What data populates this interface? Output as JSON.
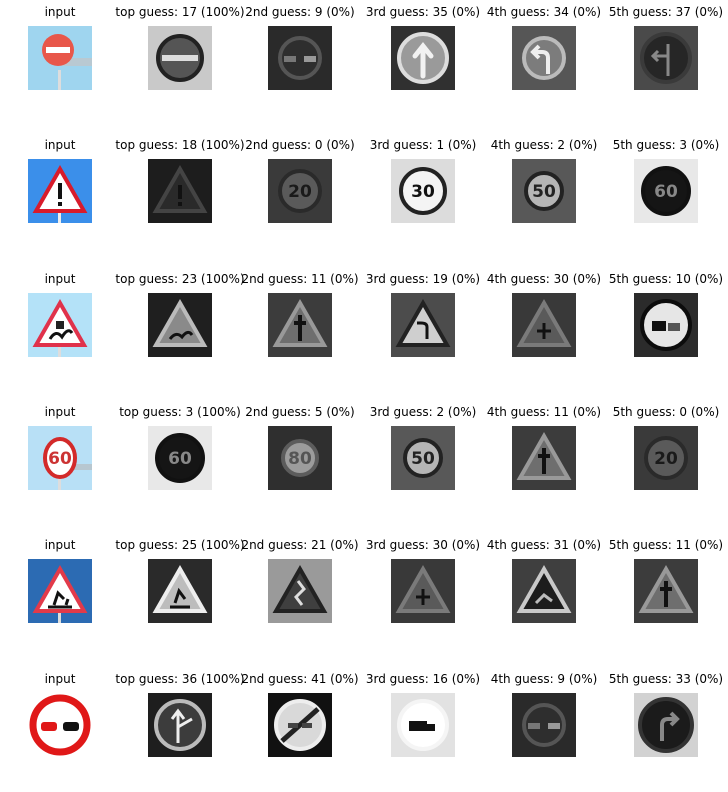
{
  "rows": [
    {
      "titles": [
        "input",
        "top guess: 17 (100%)",
        "2nd guess: 9 (0%)",
        "3rd guess: 35 (0%)",
        "4th guess: 34 (0%)",
        "5th guess: 37 (0%)"
      ],
      "images": [
        "input-no-entry-sign",
        "no-entry-sign-gray",
        "no-passing-sign-gray",
        "ahead-only-sign-gray",
        "turn-left-ahead-sign-gray",
        "go-straight-or-left-sign-gray"
      ]
    },
    {
      "titles": [
        "input",
        "top guess: 18 (100%)",
        "2nd guess: 0 (0%)",
        "3rd guess: 1 (0%)",
        "4th guess: 2 (0%)",
        "5th guess: 3 (0%)"
      ],
      "images": [
        "input-general-caution-sign",
        "general-caution-sign-gray",
        "speed-limit-20-sign-gray",
        "speed-limit-30-sign-gray",
        "speed-limit-50-sign-gray",
        "speed-limit-60-sign-gray"
      ]
    },
    {
      "titles": [
        "input",
        "top guess: 23 (100%)",
        "2nd guess: 11 (0%)",
        "3rd guess: 19 (0%)",
        "4th guess: 30 (0%)",
        "5th guess: 10 (0%)"
      ],
      "images": [
        "input-slippery-road-sign",
        "slippery-road-sign-gray",
        "right-of-way-sign-gray",
        "dangerous-curve-left-sign-gray",
        "beware-ice-snow-sign-gray",
        "no-passing-trucks-sign-gray"
      ]
    },
    {
      "titles": [
        "input",
        "top guess: 3 (100%)",
        "2nd guess: 5 (0%)",
        "3rd guess: 2 (0%)",
        "4th guess: 11 (0%)",
        "5th guess: 0 (0%)"
      ],
      "images": [
        "input-speed-limit-60-sign",
        "speed-limit-60-sign-gray",
        "speed-limit-80-sign-gray",
        "speed-limit-50-sign-gray",
        "right-of-way-sign-gray",
        "speed-limit-20-sign-gray"
      ]
    },
    {
      "titles": [
        "input",
        "top guess: 25 (100%)",
        "2nd guess: 21 (0%)",
        "3rd guess: 30 (0%)",
        "4th guess: 31 (0%)",
        "5th guess: 11 (0%)"
      ],
      "images": [
        "input-road-work-sign",
        "road-work-sign-gray",
        "double-curve-sign-gray",
        "beware-ice-snow-sign-gray",
        "wild-animals-sign-gray",
        "right-of-way-sign-gray"
      ]
    },
    {
      "titles": [
        "input",
        "top guess: 36 (100%)",
        "2nd guess: 41 (0%)",
        "3rd guess: 16 (0%)",
        "4th guess: 9 (0%)",
        "5th guess: 33 (0%)"
      ],
      "images": [
        "input-no-passing-sign",
        "go-straight-or-right-sign-gray",
        "end-of-no-passing-sign-gray",
        "trucks-prohibited-sign-gray",
        "no-passing-sign-gray",
        "turn-right-ahead-sign-gray"
      ]
    }
  ]
}
